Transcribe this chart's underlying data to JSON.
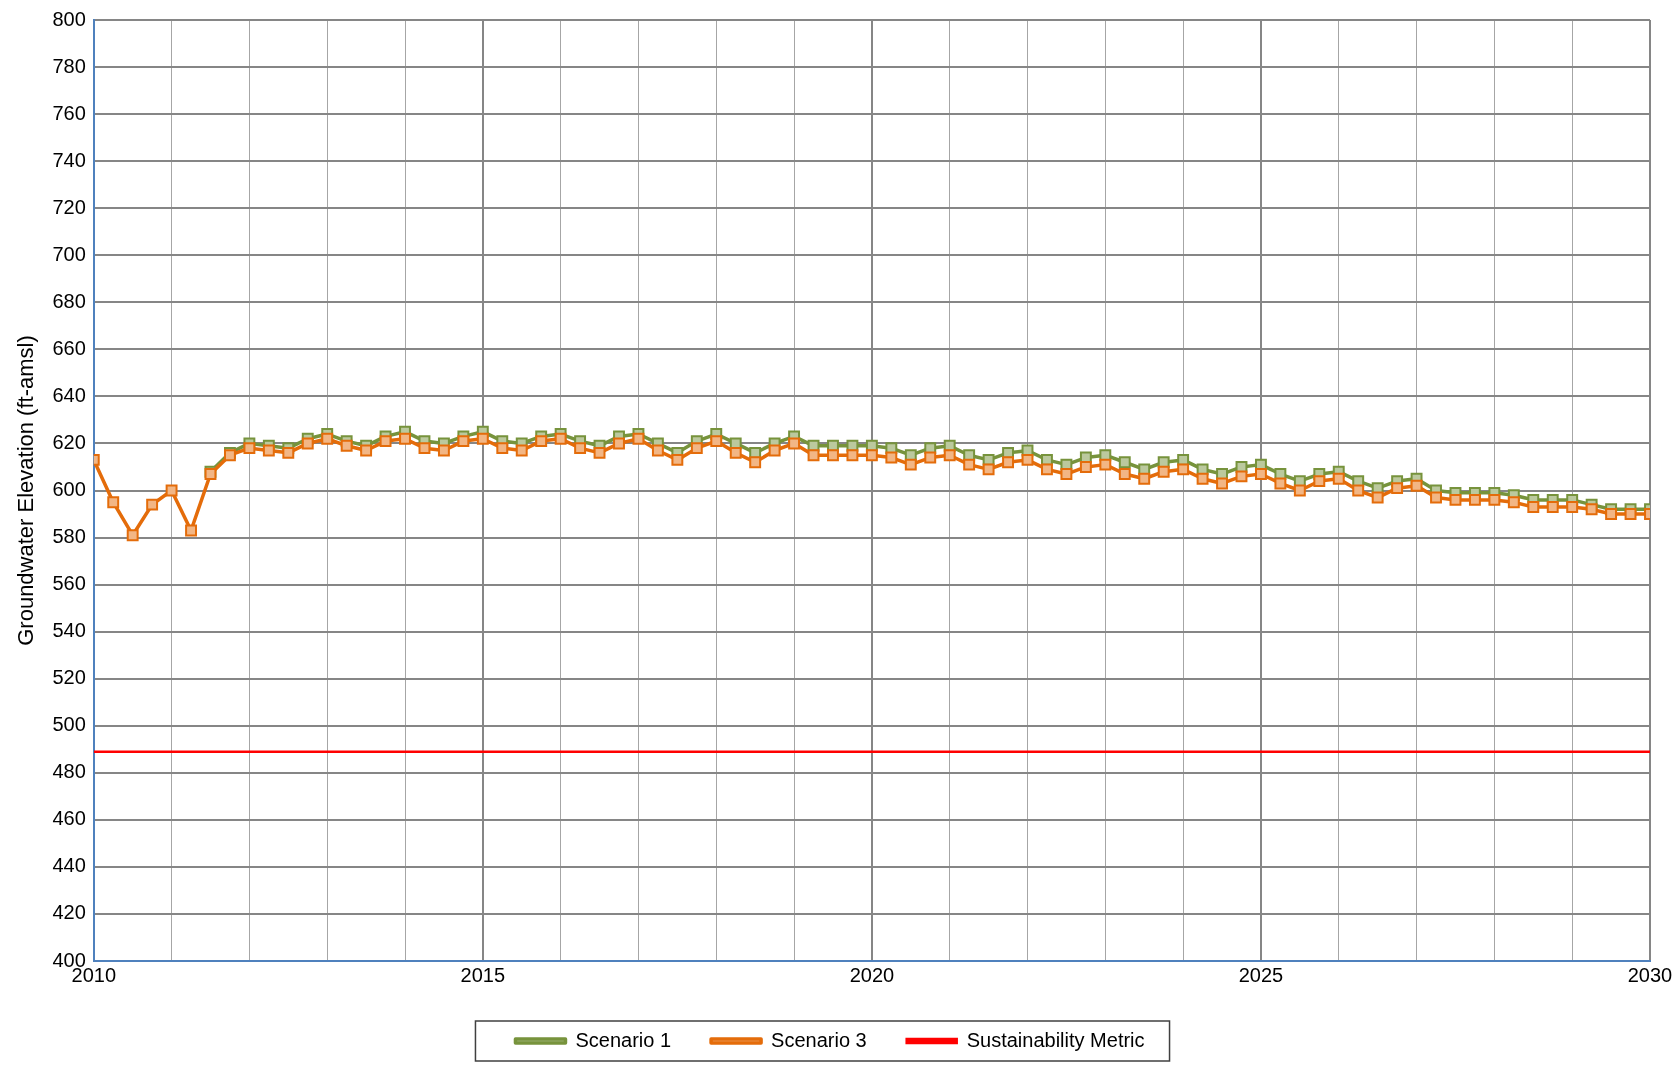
{
  "chart_data": {
    "type": "line",
    "ylabel": "Groundwater Elevation (ft-amsl)",
    "x": [
      2010,
      2010.25,
      2010.5,
      2010.75,
      2011,
      2011.25,
      2011.5,
      2011.75,
      2012,
      2012.25,
      2012.5,
      2012.75,
      2013,
      2013.25,
      2013.5,
      2013.75,
      2014,
      2014.25,
      2014.5,
      2014.75,
      2015,
      2015.25,
      2015.5,
      2015.75,
      2016,
      2016.25,
      2016.5,
      2016.75,
      2017,
      2017.25,
      2017.5,
      2017.75,
      2018,
      2018.25,
      2018.5,
      2018.75,
      2019,
      2019.25,
      2019.5,
      2019.75,
      2020,
      2020.25,
      2020.5,
      2020.75,
      2021,
      2021.25,
      2021.5,
      2021.75,
      2022,
      2022.25,
      2022.5,
      2022.75,
      2023,
      2023.25,
      2023.5,
      2023.75,
      2024,
      2024.25,
      2024.5,
      2024.75,
      2025,
      2025.25,
      2025.5,
      2025.75,
      2026,
      2026.25,
      2026.5,
      2026.75,
      2027,
      2027.25,
      2027.5,
      2027.75,
      2028,
      2028.25,
      2028.5,
      2028.75,
      2029,
      2029.25,
      2029.5,
      2029.75,
      2030
    ],
    "series": [
      {
        "name": "Scenario 1",
        "color": "#77933c",
        "values": [
          null,
          null,
          null,
          null,
          null,
          null,
          608,
          616,
          620,
          619,
          618,
          622,
          624,
          621,
          619,
          623,
          625,
          621,
          620,
          623,
          625,
          621,
          620,
          623,
          624,
          621,
          619,
          623,
          624,
          620,
          616,
          621,
          624,
          620,
          616,
          620,
          623,
          619,
          619,
          619,
          619,
          618,
          615,
          618,
          619,
          615,
          613,
          616,
          617,
          613,
          611,
          614,
          615,
          612,
          609,
          612,
          613,
          609,
          607,
          610,
          611,
          607,
          604,
          607,
          608,
          604,
          601,
          604,
          605,
          600,
          599,
          599,
          599,
          598,
          596,
          596,
          596,
          594,
          592,
          592,
          592
        ]
      },
      {
        "name": "Scenario 3",
        "color": "#e46c0a",
        "values": [
          613,
          595,
          581,
          594,
          600,
          583,
          607,
          615,
          618,
          617,
          616,
          620,
          622,
          619,
          617,
          621,
          622,
          618,
          617,
          621,
          622,
          618,
          617,
          621,
          622,
          618,
          616,
          620,
          622,
          617,
          613,
          618,
          621,
          616,
          612,
          617,
          620,
          615,
          615,
          615,
          615,
          614,
          611,
          614,
          615,
          611,
          609,
          612,
          613,
          609,
          607,
          610,
          611,
          607,
          605,
          608,
          609,
          605,
          603,
          606,
          607,
          603,
          600,
          604,
          605,
          600,
          597,
          601,
          602,
          597,
          596,
          596,
          596,
          595,
          593,
          593,
          593,
          592,
          590,
          590,
          590
        ]
      }
    ],
    "ref_lines": [
      {
        "axis": "y",
        "value": 489,
        "label": "Sustainability Metric",
        "color": "#ff0000"
      }
    ],
    "xlim": [
      2010,
      2030
    ],
    "xticks": [
      2010,
      {
        "value": 2011,
        "label": null
      },
      {
        "value": 2012,
        "label": null
      },
      {
        "value": 2013,
        "label": null
      },
      {
        "value": 2014,
        "label": null
      },
      2015,
      {
        "value": 2016,
        "label": null
      },
      {
        "value": 2017,
        "label": null
      },
      {
        "value": 2018,
        "label": null
      },
      {
        "value": 2019,
        "label": null
      },
      2020,
      {
        "value": 2021,
        "label": null
      },
      {
        "value": 2022,
        "label": null
      },
      {
        "value": 2023,
        "label": null
      },
      {
        "value": 2024,
        "label": null
      },
      2025,
      {
        "value": 2026,
        "label": null
      },
      {
        "value": 2027,
        "label": null
      },
      {
        "value": 2028,
        "label": null
      },
      {
        "value": 2029,
        "label": null
      },
      2030
    ],
    "ylim": [
      400,
      800
    ],
    "yticks": [
      400,
      420,
      440,
      460,
      480,
      500,
      520,
      540,
      560,
      580,
      600,
      620,
      640,
      660,
      680,
      700,
      720,
      740,
      760,
      780,
      800
    ],
    "grid": true,
    "legend": "bottom",
    "marker": "square",
    "line_style": "solid"
  }
}
